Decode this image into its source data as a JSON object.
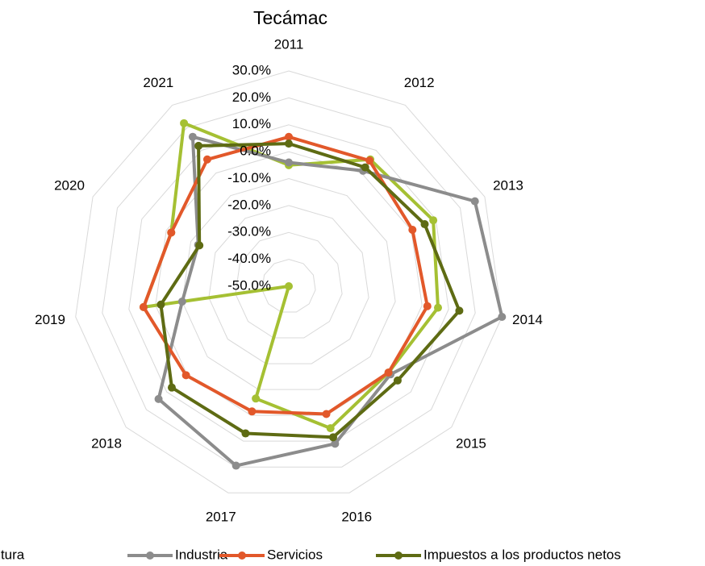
{
  "chart_data": {
    "type": "radar",
    "title": "Tecámac",
    "categories": [
      "2011",
      "2012",
      "2013",
      "2014",
      "2015",
      "2016",
      "2017",
      "2018",
      "2019",
      "2020",
      "2021"
    ],
    "ylim": [
      -50,
      30
    ],
    "yticks": [
      {
        "value": -50,
        "label": "-50.0%"
      },
      {
        "value": -40,
        "label": "-40.0%"
      },
      {
        "value": -30,
        "label": "-30.0%"
      },
      {
        "value": -20,
        "label": "-20.0%"
      },
      {
        "value": -10,
        "label": "-10.0%"
      },
      {
        "value": 0,
        "label": "0.0%"
      },
      {
        "value": 10,
        "label": "10.0%"
      },
      {
        "value": 20,
        "label": "20.0%"
      },
      {
        "value": 30,
        "label": "30.0%"
      }
    ],
    "grid": true,
    "legend": "bottom",
    "series": [
      {
        "name": "Agricultura",
        "color": "#a5c033",
        "values": [
          -5,
          6,
          9,
          6,
          -1,
          5,
          -6.5,
          -50,
          4.5,
          -2,
          22
        ]
      },
      {
        "name": "Industria",
        "color": "#8c8c8c",
        "values": [
          -4,
          1,
          26,
          30,
          0,
          11,
          19.5,
          14,
          -10,
          -13,
          16
        ]
      },
      {
        "name": "Servicios",
        "color": "#e2582a",
        "values": [
          5.5,
          5.5,
          0.5,
          2,
          -1,
          -0.5,
          -1.5,
          0.5,
          4.5,
          -2,
          6
        ]
      },
      {
        "name": "Impuestos a los productos netos",
        "color": "#5e6b13",
        "values": [
          3,
          2.5,
          5.5,
          14,
          3.5,
          8.5,
          7,
          7.5,
          -2,
          -13.5,
          12
        ]
      }
    ]
  }
}
